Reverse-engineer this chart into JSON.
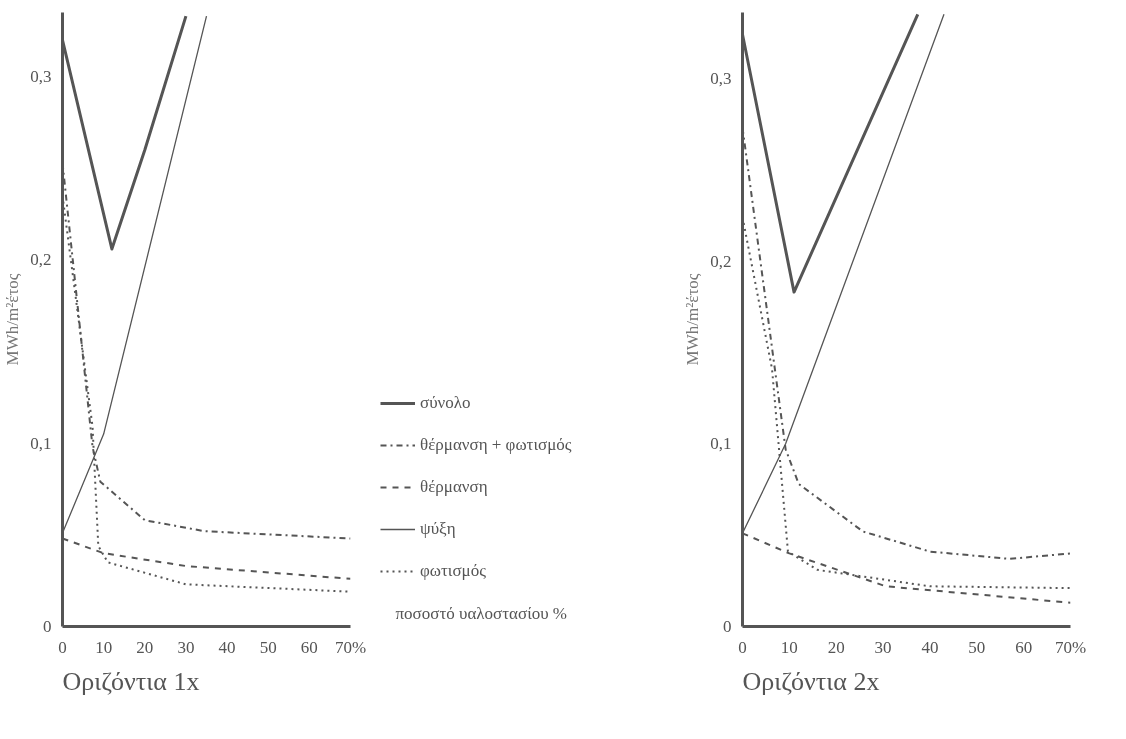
{
  "chart_data": [
    {
      "type": "line",
      "title": "Οριζόντια 1x",
      "xlabel": "ποσοστό υαλοστασίου %",
      "ylabel": "MWh/m²έτος",
      "xlim": [
        0,
        70
      ],
      "ylim": [
        0,
        0.335
      ],
      "xticks": [
        0,
        10,
        20,
        30,
        40,
        50,
        60,
        {
          "value": 70,
          "label": "70%"
        }
      ],
      "yticks": [
        0,
        {
          "value": 0.1,
          "label": "0,1"
        },
        {
          "value": 0.2,
          "label": "0,2"
        },
        {
          "value": 0.3,
          "label": "0,3"
        }
      ],
      "grid": false,
      "legend": "right",
      "series": [
        {
          "name": "σύνολο",
          "color": "#555555",
          "line_style": "solid",
          "x": [
            0,
            12,
            20,
            30
          ],
          "values": [
            0.32,
            0.206,
            0.26,
            0.333
          ]
        },
        {
          "name": "θέρμανση + φωτισμός",
          "color": "#555555",
          "line_style": "dashdot",
          "x": [
            0,
            7.3,
            9.2,
            20,
            34.5,
            70
          ],
          "values": [
            0.253,
            0.098,
            0.079,
            0.058,
            0.052,
            0.048
          ]
        },
        {
          "name": "θέρμανση",
          "color": "#555555",
          "line_style": "dashed",
          "x": [
            0,
            10,
            30,
            70
          ],
          "values": [
            0.048,
            0.04,
            0.033,
            0.026
          ]
        },
        {
          "name": "ψύξη",
          "color": "#555555",
          "line_style": "solid",
          "x": [
            0,
            10,
            35
          ],
          "values": [
            0.051,
            0.105,
            0.333
          ]
        },
        {
          "name": "φωτισμός",
          "color": "#555555",
          "line_style": "dotted",
          "x": [
            0,
            7.3,
            8.7,
            11,
            30,
            70
          ],
          "values": [
            0.235,
            0.109,
            0.044,
            0.035,
            0.023,
            0.019
          ]
        }
      ]
    },
    {
      "type": "line",
      "title": "Οριζόντια 2x",
      "ylabel": "MWh/m²έτος",
      "xlim": [
        0,
        70
      ],
      "ylim": [
        0,
        0.336
      ],
      "xticks": [
        0,
        10,
        20,
        30,
        40,
        50,
        60,
        {
          "value": 70,
          "label": "70%"
        }
      ],
      "yticks": [
        0,
        {
          "value": 0.1,
          "label": "0,1"
        },
        {
          "value": 0.2,
          "label": "0,2"
        },
        {
          "value": 0.3,
          "label": "0,3"
        }
      ],
      "grid": false,
      "series": [
        {
          "color": "#555555",
          "line_style": "solid",
          "x": [
            0,
            11,
            37.4
          ],
          "values": [
            0.324,
            0.183,
            0.335
          ]
        },
        {
          "color": "#555555",
          "line_style": "dashdot",
          "x": [
            0,
            9.2,
            12,
            25.7,
            40,
            57,
            70
          ],
          "values": [
            0.273,
            0.097,
            0.078,
            0.052,
            0.041,
            0.037,
            0.04
          ]
        },
        {
          "color": "#555555",
          "line_style": "dashed",
          "x": [
            0,
            10,
            30.6,
            70
          ],
          "values": [
            0.051,
            0.04,
            0.022,
            0.013
          ]
        },
        {
          "color": "#555555",
          "line_style": "solid",
          "x": [
            0,
            9.2,
            43
          ],
          "values": [
            0.051,
            0.1,
            0.335
          ]
        },
        {
          "color": "#555555",
          "line_style": "dotted",
          "x": [
            0,
            6.3,
            9.7,
            16,
            40,
            70
          ],
          "values": [
            0.224,
            0.141,
            0.041,
            0.031,
            0.022,
            0.021
          ]
        }
      ]
    }
  ]
}
